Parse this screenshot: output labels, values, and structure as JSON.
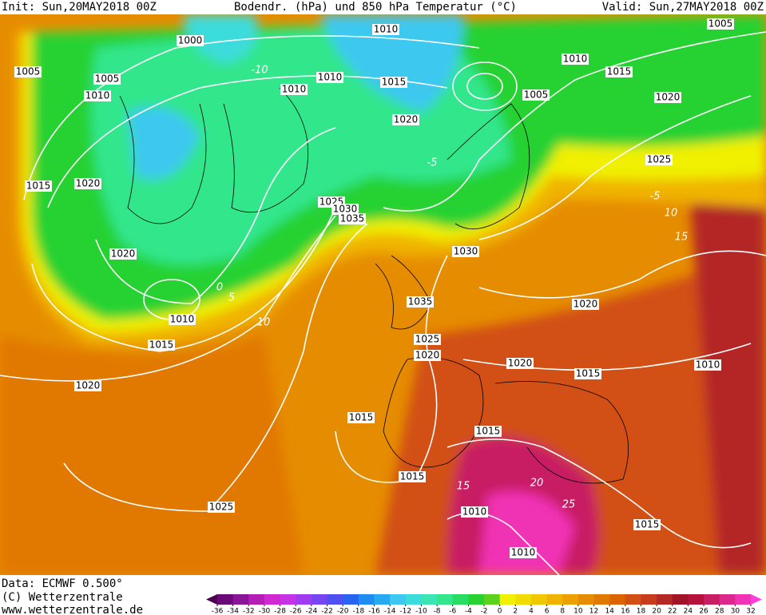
{
  "header": {
    "init": "Init: Sun,20MAY2018 00Z",
    "title": "Bodendr. (hPa) und 850 hPa Temperatur (°C)",
    "valid": "Valid: Sun,27MAY2018 00Z"
  },
  "footer": {
    "data": "Data: ECMWF  0.500°",
    "copyright": "(C) Wetterzentrale",
    "url": "www.wetterzentrale.de"
  },
  "isobar_labels": [
    "1000",
    "1005",
    "1005",
    "1010",
    "1015",
    "1020",
    "1020",
    "1010",
    "1015",
    "1020",
    "1010",
    "1010",
    "1010",
    "1015",
    "1020",
    "1005",
    "1010",
    "1015",
    "1020",
    "1005",
    "1025",
    "1025",
    "1030",
    "1035",
    "1030",
    "1035",
    "1025",
    "1020",
    "1020",
    "1020",
    "1015",
    "1010",
    "1015",
    "1015",
    "1015",
    "1025",
    "1010",
    "1015",
    "1010"
  ],
  "temperature_labels": [
    "-10",
    "-5",
    "0",
    "5",
    "10",
    "15",
    "20",
    "25",
    "-5",
    "10",
    "15"
  ],
  "color_scale": {
    "ticks": [
      -36,
      -34,
      -32,
      -30,
      -28,
      -26,
      -24,
      -22,
      -20,
      -18,
      -16,
      -14,
      -12,
      -10,
      -8,
      -6,
      -4,
      -2,
      0,
      2,
      4,
      6,
      8,
      10,
      12,
      14,
      16,
      18,
      20,
      22,
      24,
      26,
      28,
      30,
      32
    ],
    "colors": [
      "#4b0050",
      "#6a0a78",
      "#8c1496",
      "#b41eb4",
      "#d228d2",
      "#c832e6",
      "#a03cf0",
      "#7846f0",
      "#5050f0",
      "#2864f0",
      "#1e8cf0",
      "#28aaf0",
      "#3cc8f0",
      "#3cdcdc",
      "#3ce6b4",
      "#32e68c",
      "#28dc64",
      "#28d232",
      "#5ad21e",
      "#f0f000",
      "#f0dc00",
      "#f0c800",
      "#f0b400",
      "#eba000",
      "#e68c00",
      "#e17800",
      "#dc6400",
      "#d25014",
      "#c83c1e",
      "#b42828",
      "#a01428",
      "#b4143c",
      "#c81e64",
      "#dc288c",
      "#f032b4",
      "#ff3cdc"
    ]
  }
}
